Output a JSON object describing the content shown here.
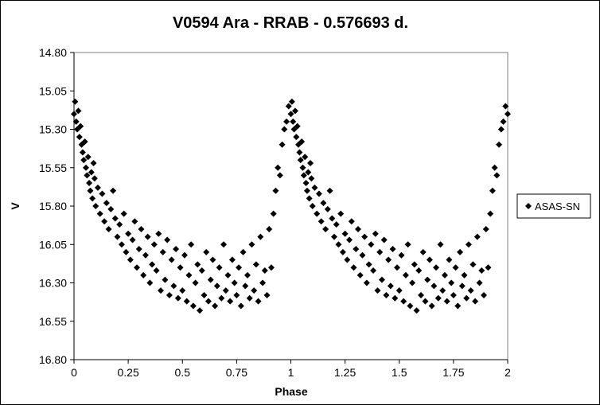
{
  "chart_data": {
    "type": "scatter",
    "title": "V0594 Ara - RRAB - 0.576693 d.",
    "xlabel": "Phase",
    "ylabel": "V",
    "xlim": [
      0,
      2
    ],
    "ylim": [
      14.8,
      16.8
    ],
    "y_inverted": true,
    "xticks": [
      0,
      0.25,
      0.5,
      0.75,
      1,
      1.25,
      1.5,
      1.75,
      2
    ],
    "xtick_labels": [
      "0",
      "0.25",
      "0.5",
      "0.75",
      "1",
      "1.25",
      "1.5",
      "1.75",
      "2"
    ],
    "yticks": [
      14.8,
      15.05,
      15.3,
      15.55,
      15.8,
      16.05,
      16.3,
      16.55,
      16.8
    ],
    "ytick_labels": [
      "14.80",
      "15.05",
      "15.30",
      "15.55",
      "15.80",
      "16.05",
      "16.30",
      "16.55",
      "16.80"
    ],
    "grid": false,
    "legend_position": "right",
    "marker": "diamond",
    "marker_color": "#000000",
    "series": [
      {
        "name": "ASAS-SN",
        "points": [
          [
            0.0,
            15.2
          ],
          [
            0.005,
            15.12
          ],
          [
            0.01,
            15.25
          ],
          [
            0.015,
            15.3
          ],
          [
            0.02,
            15.18
          ],
          [
            0.025,
            15.35
          ],
          [
            0.03,
            15.28
          ],
          [
            0.035,
            15.4
          ],
          [
            0.04,
            15.45
          ],
          [
            0.045,
            15.5
          ],
          [
            0.05,
            15.38
          ],
          [
            0.055,
            15.55
          ],
          [
            0.06,
            15.6
          ],
          [
            0.065,
            15.48
          ],
          [
            0.07,
            15.65
          ],
          [
            0.075,
            15.7
          ],
          [
            0.08,
            15.58
          ],
          [
            0.085,
            15.75
          ],
          [
            0.09,
            15.52
          ],
          [
            0.095,
            15.62
          ],
          [
            0.1,
            15.8
          ],
          [
            0.11,
            15.68
          ],
          [
            0.12,
            15.85
          ],
          [
            0.13,
            15.72
          ],
          [
            0.14,
            15.9
          ],
          [
            0.15,
            15.78
          ],
          [
            0.16,
            15.95
          ],
          [
            0.17,
            15.82
          ],
          [
            0.18,
            15.7
          ],
          [
            0.19,
            15.88
          ],
          [
            0.2,
            16.0
          ],
          [
            0.21,
            15.92
          ],
          [
            0.22,
            16.05
          ],
          [
            0.23,
            15.85
          ],
          [
            0.24,
            16.1
          ],
          [
            0.25,
            15.98
          ],
          [
            0.26,
            16.15
          ],
          [
            0.27,
            16.02
          ],
          [
            0.28,
            15.9
          ],
          [
            0.29,
            16.2
          ],
          [
            0.3,
            16.08
          ],
          [
            0.31,
            15.95
          ],
          [
            0.32,
            16.25
          ],
          [
            0.33,
            16.12
          ],
          [
            0.34,
            16.0
          ],
          [
            0.35,
            16.3
          ],
          [
            0.36,
            16.18
          ],
          [
            0.37,
            16.05
          ],
          [
            0.38,
            16.22
          ],
          [
            0.39,
            15.98
          ],
          [
            0.4,
            16.35
          ],
          [
            0.41,
            16.1
          ],
          [
            0.42,
            16.28
          ],
          [
            0.43,
            16.02
          ],
          [
            0.44,
            16.38
          ],
          [
            0.45,
            16.15
          ],
          [
            0.46,
            16.32
          ],
          [
            0.47,
            16.08
          ],
          [
            0.48,
            16.4
          ],
          [
            0.49,
            16.2
          ],
          [
            0.5,
            16.35
          ],
          [
            0.51,
            16.12
          ],
          [
            0.52,
            16.42
          ],
          [
            0.53,
            16.25
          ],
          [
            0.54,
            16.05
          ],
          [
            0.55,
            16.45
          ],
          [
            0.56,
            16.3
          ],
          [
            0.57,
            16.18
          ],
          [
            0.58,
            16.48
          ],
          [
            0.59,
            16.22
          ],
          [
            0.6,
            16.38
          ],
          [
            0.61,
            16.1
          ],
          [
            0.62,
            16.42
          ],
          [
            0.63,
            16.28
          ],
          [
            0.64,
            16.15
          ],
          [
            0.65,
            16.45
          ],
          [
            0.66,
            16.32
          ],
          [
            0.67,
            16.2
          ],
          [
            0.68,
            16.4
          ],
          [
            0.69,
            16.05
          ],
          [
            0.7,
            16.35
          ],
          [
            0.71,
            16.25
          ],
          [
            0.72,
            16.42
          ],
          [
            0.73,
            16.15
          ],
          [
            0.74,
            16.3
          ],
          [
            0.75,
            16.38
          ],
          [
            0.76,
            16.2
          ],
          [
            0.77,
            16.45
          ],
          [
            0.78,
            16.1
          ],
          [
            0.79,
            16.32
          ],
          [
            0.8,
            16.25
          ],
          [
            0.81,
            16.4
          ],
          [
            0.82,
            16.05
          ],
          [
            0.83,
            16.35
          ],
          [
            0.84,
            16.18
          ],
          [
            0.85,
            16.42
          ],
          [
            0.86,
            16.0
          ],
          [
            0.87,
            16.3
          ],
          [
            0.88,
            16.22
          ],
          [
            0.89,
            16.38
          ],
          [
            0.9,
            15.95
          ],
          [
            0.91,
            16.2
          ],
          [
            0.92,
            15.85
          ],
          [
            0.93,
            15.7
          ],
          [
            0.94,
            15.55
          ],
          [
            0.95,
            15.6
          ],
          [
            0.96,
            15.4
          ],
          [
            0.97,
            15.3
          ],
          [
            0.98,
            15.25
          ],
          [
            0.99,
            15.15
          ],
          [
            1.0,
            15.2
          ],
          [
            1.005,
            15.12
          ],
          [
            1.01,
            15.25
          ],
          [
            1.015,
            15.3
          ],
          [
            1.02,
            15.18
          ],
          [
            1.025,
            15.35
          ],
          [
            1.03,
            15.28
          ],
          [
            1.035,
            15.4
          ],
          [
            1.04,
            15.45
          ],
          [
            1.045,
            15.5
          ],
          [
            1.05,
            15.38
          ],
          [
            1.055,
            15.55
          ],
          [
            1.06,
            15.6
          ],
          [
            1.065,
            15.48
          ],
          [
            1.07,
            15.65
          ],
          [
            1.075,
            15.7
          ],
          [
            1.08,
            15.58
          ],
          [
            1.085,
            15.75
          ],
          [
            1.09,
            15.52
          ],
          [
            1.095,
            15.62
          ],
          [
            1.1,
            15.8
          ],
          [
            1.11,
            15.68
          ],
          [
            1.12,
            15.85
          ],
          [
            1.13,
            15.72
          ],
          [
            1.14,
            15.9
          ],
          [
            1.15,
            15.78
          ],
          [
            1.16,
            15.95
          ],
          [
            1.17,
            15.82
          ],
          [
            1.18,
            15.7
          ],
          [
            1.19,
            15.88
          ],
          [
            1.2,
            16.0
          ],
          [
            1.21,
            15.92
          ],
          [
            1.22,
            16.05
          ],
          [
            1.23,
            15.85
          ],
          [
            1.24,
            16.1
          ],
          [
            1.25,
            15.98
          ],
          [
            1.26,
            16.15
          ],
          [
            1.27,
            16.02
          ],
          [
            1.28,
            15.9
          ],
          [
            1.29,
            16.2
          ],
          [
            1.3,
            16.08
          ],
          [
            1.31,
            15.95
          ],
          [
            1.32,
            16.25
          ],
          [
            1.33,
            16.12
          ],
          [
            1.34,
            16.0
          ],
          [
            1.35,
            16.3
          ],
          [
            1.36,
            16.18
          ],
          [
            1.37,
            16.05
          ],
          [
            1.38,
            16.22
          ],
          [
            1.39,
            15.98
          ],
          [
            1.4,
            16.35
          ],
          [
            1.41,
            16.1
          ],
          [
            1.42,
            16.28
          ],
          [
            1.43,
            16.02
          ],
          [
            1.44,
            16.38
          ],
          [
            1.45,
            16.15
          ],
          [
            1.46,
            16.32
          ],
          [
            1.47,
            16.08
          ],
          [
            1.48,
            16.4
          ],
          [
            1.49,
            16.2
          ],
          [
            1.5,
            16.35
          ],
          [
            1.51,
            16.12
          ],
          [
            1.52,
            16.42
          ],
          [
            1.53,
            16.25
          ],
          [
            1.54,
            16.05
          ],
          [
            1.55,
            16.45
          ],
          [
            1.56,
            16.3
          ],
          [
            1.57,
            16.18
          ],
          [
            1.58,
            16.48
          ],
          [
            1.59,
            16.22
          ],
          [
            1.6,
            16.38
          ],
          [
            1.61,
            16.1
          ],
          [
            1.62,
            16.42
          ],
          [
            1.63,
            16.28
          ],
          [
            1.64,
            16.15
          ],
          [
            1.65,
            16.45
          ],
          [
            1.66,
            16.32
          ],
          [
            1.67,
            16.2
          ],
          [
            1.68,
            16.4
          ],
          [
            1.69,
            16.05
          ],
          [
            1.7,
            16.35
          ],
          [
            1.71,
            16.25
          ],
          [
            1.72,
            16.42
          ],
          [
            1.73,
            16.15
          ],
          [
            1.74,
            16.3
          ],
          [
            1.75,
            16.38
          ],
          [
            1.76,
            16.2
          ],
          [
            1.77,
            16.45
          ],
          [
            1.78,
            16.1
          ],
          [
            1.79,
            16.32
          ],
          [
            1.8,
            16.25
          ],
          [
            1.81,
            16.4
          ],
          [
            1.82,
            16.05
          ],
          [
            1.83,
            16.35
          ],
          [
            1.84,
            16.18
          ],
          [
            1.85,
            16.42
          ],
          [
            1.86,
            16.0
          ],
          [
            1.87,
            16.3
          ],
          [
            1.88,
            16.22
          ],
          [
            1.89,
            16.38
          ],
          [
            1.9,
            15.95
          ],
          [
            1.91,
            16.2
          ],
          [
            1.92,
            15.85
          ],
          [
            1.93,
            15.7
          ],
          [
            1.94,
            15.55
          ],
          [
            1.95,
            15.6
          ],
          [
            1.96,
            15.4
          ],
          [
            1.97,
            15.3
          ],
          [
            1.98,
            15.25
          ],
          [
            1.99,
            15.15
          ],
          [
            2.0,
            15.2
          ]
        ]
      }
    ]
  }
}
